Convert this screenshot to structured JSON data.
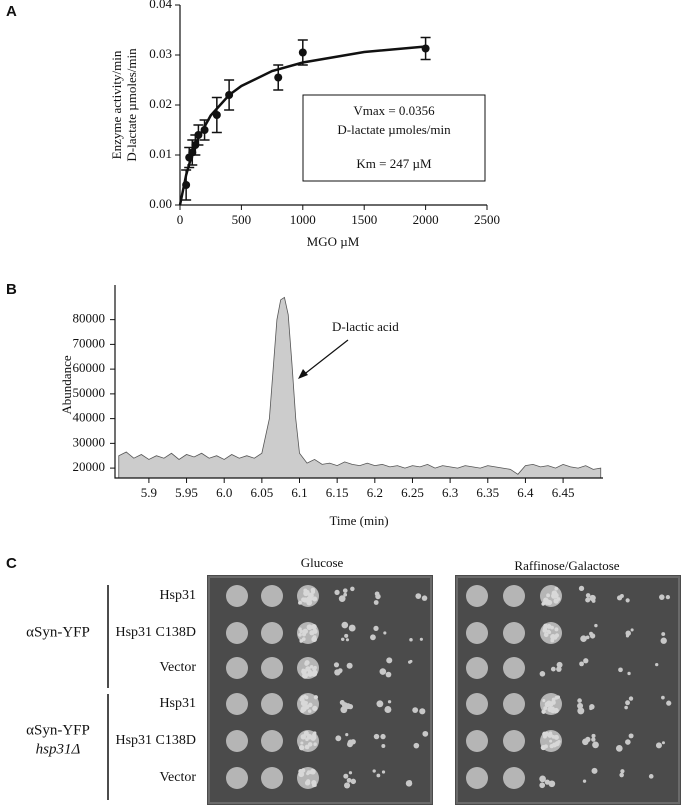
{
  "chart_data": [
    {
      "type": "scatter",
      "panel": "A",
      "xlabel": "MGO µM",
      "ylabel": [
        "Enzyme activity/min",
        "D-lactate µmoles/min"
      ],
      "x": [
        50,
        75,
        100,
        125,
        150,
        200,
        300,
        400,
        800,
        1000,
        2000
      ],
      "values": [
        0.004,
        0.0095,
        0.0105,
        0.012,
        0.014,
        0.015,
        0.018,
        0.022,
        0.0255,
        0.0305,
        0.0313
      ],
      "errors": [
        0.003,
        0.002,
        0.0025,
        0.002,
        0.002,
        0.002,
        0.0035,
        0.003,
        0.0025,
        0.0025,
        0.0022
      ],
      "fit_x": [
        0,
        50,
        100,
        150,
        250,
        400,
        500,
        750,
        1000,
        1500,
        2000
      ],
      "fit_values": [
        0,
        0.006,
        0.01026,
        0.01344,
        0.0179,
        0.022,
        0.0238,
        0.0268,
        0.0285,
        0.0306,
        0.0317
      ],
      "xlim": [
        0,
        2500
      ],
      "xticks": [
        0,
        500,
        1000,
        1500,
        2000,
        2500
      ],
      "ylim": [
        0,
        0.04
      ],
      "yticks": [
        {
          "value": 0,
          "label": "0.00"
        },
        0.01,
        0.02,
        0.03,
        0.04
      ],
      "annotation": [
        "Vmax = 0.0356",
        "D-lactate µmoles/min",
        "Km = 247 µM"
      ],
      "color": "#111111"
    },
    {
      "type": "area",
      "panel": "B",
      "xlabel": "Time (min)",
      "ylabel": "Abundance",
      "annotation": "D-lactic acid",
      "x": [
        5.86,
        5.87,
        5.88,
        5.89,
        5.9,
        5.91,
        5.92,
        5.93,
        5.94,
        5.95,
        5.96,
        5.97,
        5.98,
        5.99,
        6.0,
        6.01,
        6.02,
        6.03,
        6.04,
        6.05,
        6.06,
        6.065,
        6.07,
        6.075,
        6.08,
        6.085,
        6.09,
        6.095,
        6.1,
        6.11,
        6.12,
        6.13,
        6.14,
        6.15,
        6.16,
        6.17,
        6.18,
        6.19,
        6.2,
        6.21,
        6.22,
        6.23,
        6.24,
        6.25,
        6.26,
        6.27,
        6.28,
        6.29,
        6.3,
        6.31,
        6.32,
        6.33,
        6.34,
        6.35,
        6.36,
        6.37,
        6.38,
        6.39,
        6.4,
        6.41,
        6.42,
        6.43,
        6.44,
        6.45,
        6.46,
        6.47,
        6.48,
        6.49,
        6.5
      ],
      "values": [
        25000,
        26500,
        24000,
        25500,
        23500,
        25000,
        24000,
        26000,
        23500,
        25500,
        24500,
        26000,
        24000,
        25000,
        23500,
        25500,
        24000,
        25000,
        24000,
        26000,
        40000,
        60000,
        80000,
        88000,
        89000,
        82000,
        62000,
        40000,
        26000,
        22000,
        23500,
        21500,
        22000,
        21000,
        22500,
        21500,
        21000,
        22000,
        21000,
        21500,
        20500,
        21000,
        20000,
        21000,
        20500,
        21500,
        20000,
        21000,
        20500,
        20000,
        21000,
        20500,
        20000,
        21000,
        20500,
        20000,
        19500,
        17500,
        21000,
        21500,
        20500,
        21000,
        20000,
        21500,
        20500,
        20000,
        21000,
        19500,
        20000
      ],
      "xlim": [
        5.855,
        6.503
      ],
      "xticks": [
        5.9,
        5.95,
        {
          "value": 6.0,
          "label": "6.0"
        },
        6.05,
        6.1,
        6.15,
        6.2,
        6.25,
        6.3,
        6.35,
        6.4,
        6.45
      ],
      "ylim": [
        16000,
        94000
      ],
      "yticks": [
        20000,
        30000,
        40000,
        50000,
        60000,
        70000,
        80000
      ],
      "color": "#cccccc"
    }
  ],
  "panel_c": {
    "panel": "C",
    "conditions": [
      "Glucose",
      "Raffinose/Galactose"
    ],
    "groups": [
      {
        "name": "αSyn-YFP",
        "rows": [
          "Hsp31",
          "Hsp31 C138D",
          "Vector"
        ]
      },
      {
        "name": "αSyn-YFP",
        "subname": "hsp31Δ",
        "rows": [
          "Hsp31",
          "Hsp31 C138D",
          "Vector"
        ]
      }
    ]
  }
}
